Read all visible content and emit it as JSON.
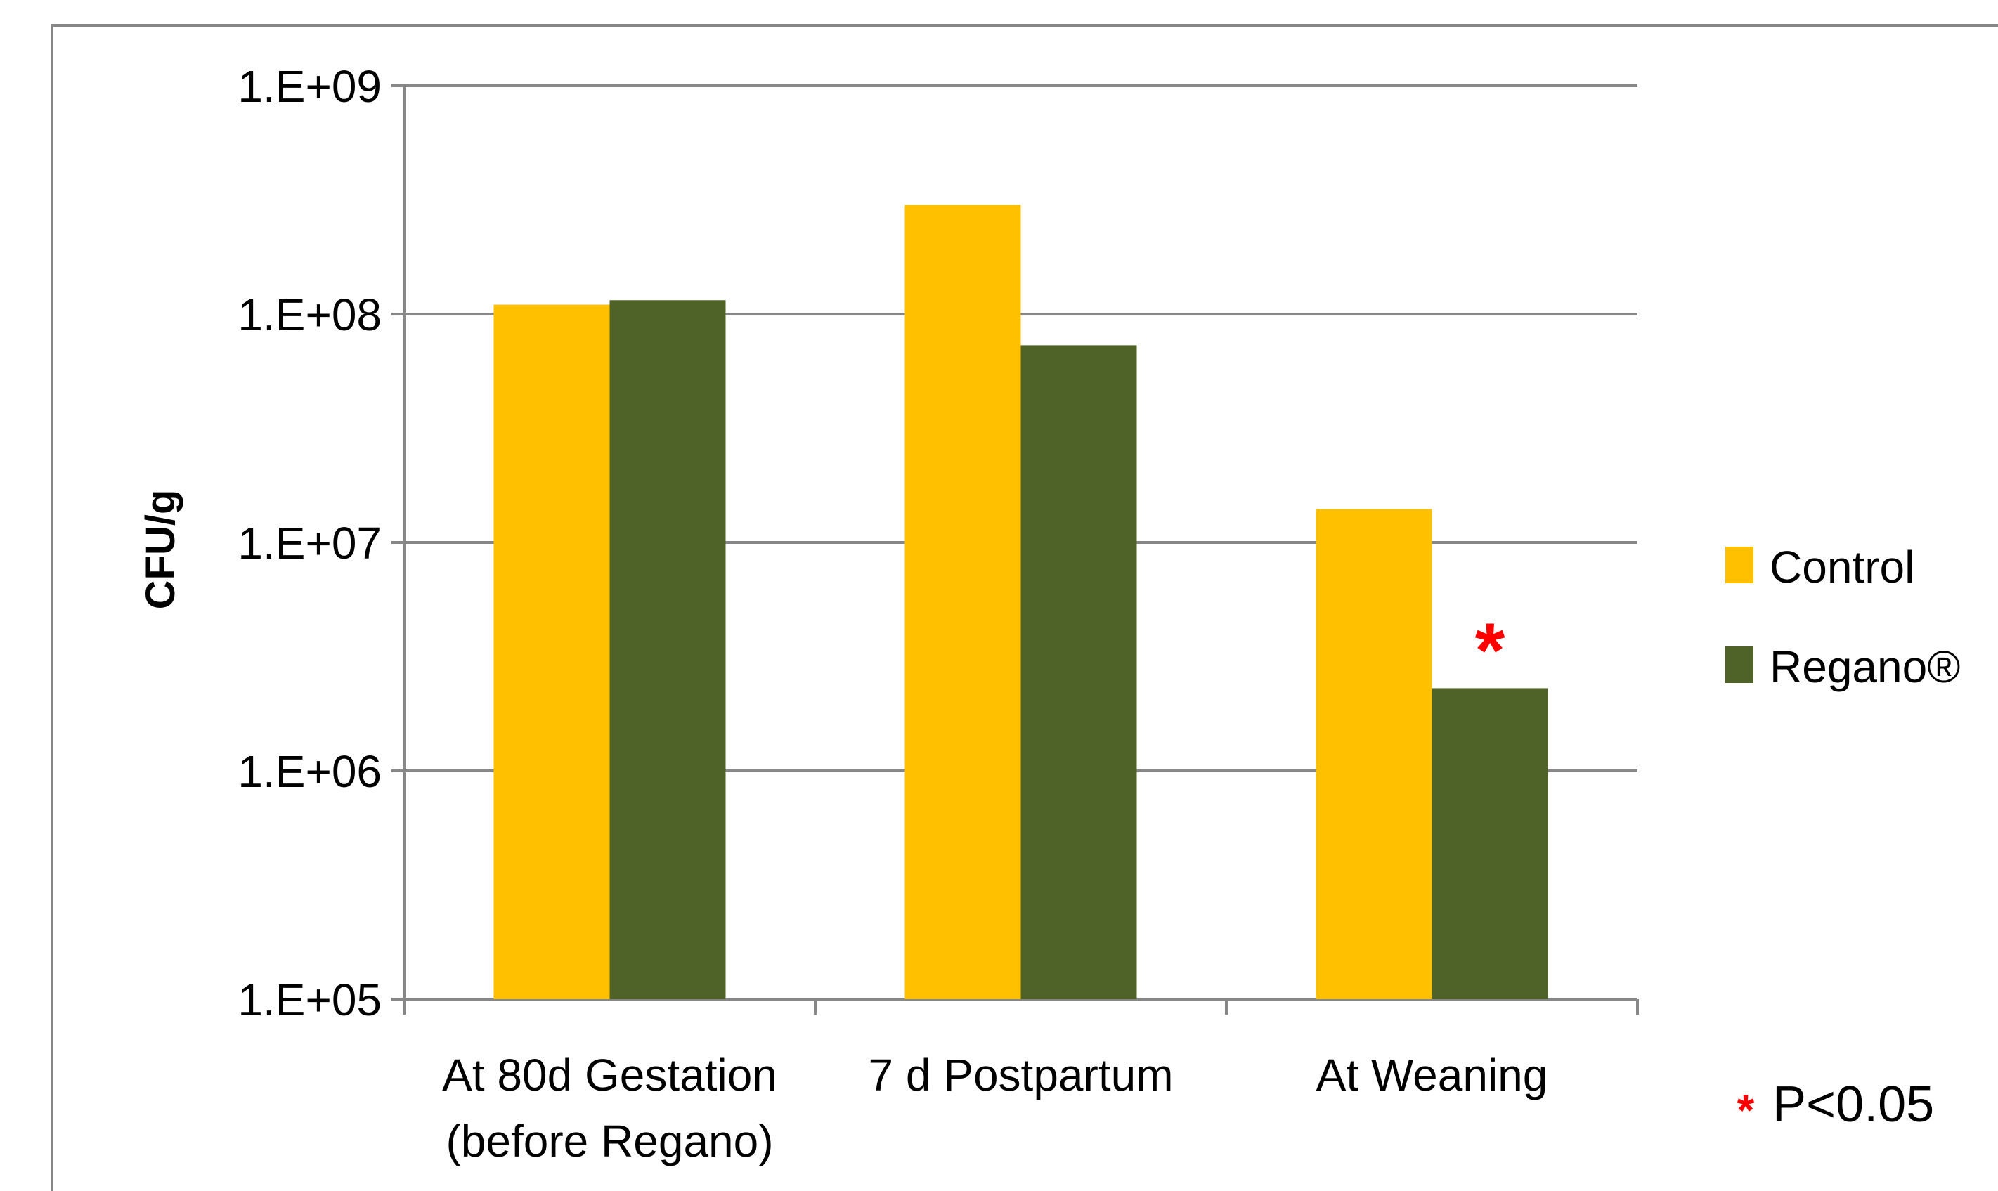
{
  "chart_data": {
    "type": "bar",
    "scale": "log",
    "ylabel": "CFU/g",
    "xlabel": "",
    "ylim": [
      100000,
      1000000000
    ],
    "y_ticks": [
      {
        "value": 100000,
        "label": "1.E+05"
      },
      {
        "value": 1000000,
        "label": "1.E+06"
      },
      {
        "value": 10000000,
        "label": "1.E+07"
      },
      {
        "value": 100000000,
        "label": "1.E+08"
      },
      {
        "value": 1000000000,
        "label": "1.E+09"
      }
    ],
    "grid": true,
    "legend_position": "right",
    "categories": [
      {
        "line1": "At 80d Gestation",
        "line2": "(before Regano)"
      },
      {
        "line1": "7 d Postpartum",
        "line2": ""
      },
      {
        "line1": "At Weaning",
        "line2": ""
      }
    ],
    "series": [
      {
        "name": "Control",
        "color": "#FFC000",
        "values": [
          110000000,
          300000000,
          14000000
        ]
      },
      {
        "name": "Regano®",
        "color": "#4F6228",
        "values": [
          115000000,
          73000000,
          2300000
        ]
      }
    ],
    "annotations": [
      {
        "text": "*",
        "category_index": 2,
        "series_index": 1,
        "color": "#FF0000"
      }
    ],
    "footnote": {
      "symbol": "*",
      "text": "P<0.05",
      "symbol_color": "#FF0000"
    },
    "colors": {
      "grid": "#878787",
      "axis": "#878787",
      "text": "#000000"
    }
  }
}
